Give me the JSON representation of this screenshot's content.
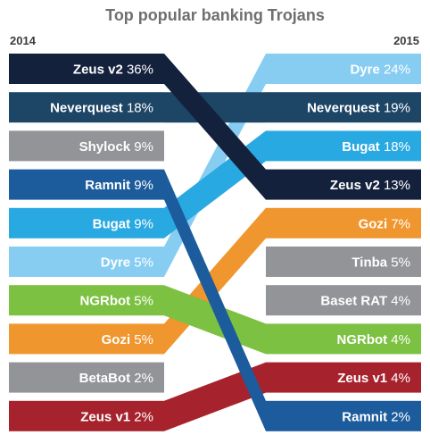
{
  "chart_data": {
    "type": "slope",
    "title": "Top popular banking Trojans",
    "left_label": "2014",
    "right_label": "2015",
    "left": [
      {
        "name": "Zeus v2",
        "value": "36%"
      },
      {
        "name": "Neverquest",
        "value": "18%"
      },
      {
        "name": "Shylock",
        "value": "9%"
      },
      {
        "name": "Ramnit",
        "value": "9%"
      },
      {
        "name": "Bugat",
        "value": "9%"
      },
      {
        "name": "Dyre",
        "value": "5%"
      },
      {
        "name": "NGRbot",
        "value": "5%"
      },
      {
        "name": "Gozi",
        "value": "5%"
      },
      {
        "name": "BetaBot",
        "value": "2%"
      },
      {
        "name": "Zeus v1",
        "value": "2%"
      }
    ],
    "right": [
      {
        "name": "Dyre",
        "value": "24%"
      },
      {
        "name": "Neverquest",
        "value": "19%"
      },
      {
        "name": "Bugat",
        "value": "18%"
      },
      {
        "name": "Zeus v2",
        "value": "13%"
      },
      {
        "name": "Gozi",
        "value": "7%"
      },
      {
        "name": "Tinba",
        "value": "5%"
      },
      {
        "name": "Baset RAT",
        "value": "4%"
      },
      {
        "name": "NGRbot",
        "value": "4%"
      },
      {
        "name": "Zeus v1",
        "value": "4%"
      },
      {
        "name": "Ramnit",
        "value": "2%"
      }
    ],
    "colors": {
      "Zeus v2": "#14213d",
      "Neverquest": "#1d4566",
      "Shylock": "#929497",
      "Ramnit": "#1c5b9c",
      "Bugat": "#29a9e1",
      "Dyre": "#87cdf2",
      "NGRbot": "#7cc142",
      "Gozi": "#f0962e",
      "BetaBot": "#929497",
      "Zeus v1": "#a6232d",
      "Tinba": "#929497",
      "Baset RAT": "#929497"
    }
  }
}
